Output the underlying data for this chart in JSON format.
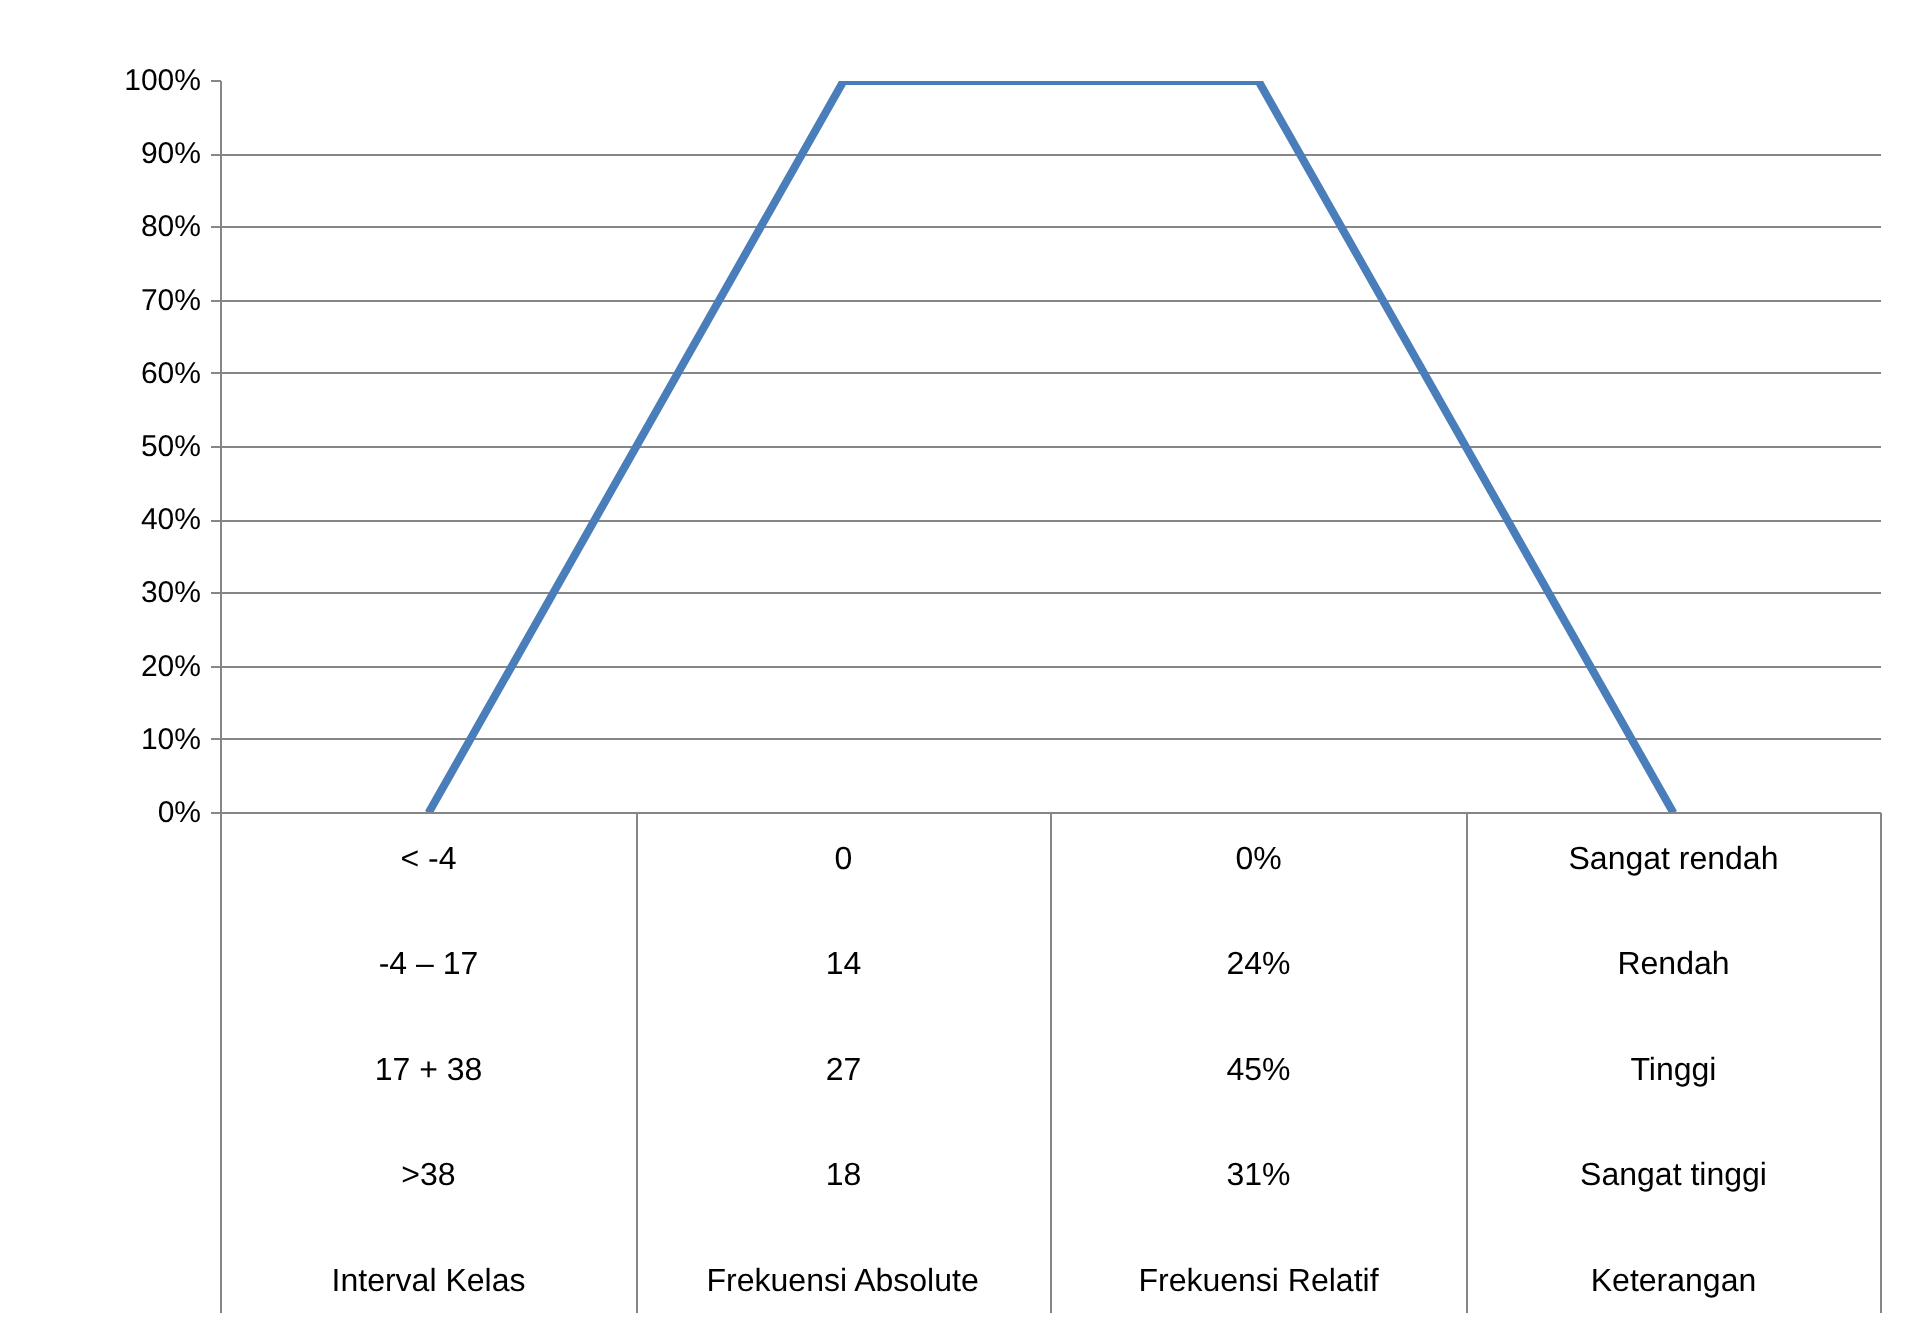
{
  "chart_data": {
    "type": "line",
    "categories": [
      "< -4\n-4 – 17\n17 + 38\n>38\nInterval Kelas",
      "0\n14\n27\n18\nFrekuensi Absolute",
      "0%\n24%\n45%\n31%\nFrekuensi Relatif",
      "Sangat rendah\nRendah\nTinggi\nSangat tinggi\nKeterangan"
    ],
    "series": [
      {
        "color": "#4a7ebb",
        "values": [
          0,
          100,
          100,
          0
        ]
      }
    ],
    "ylim": [
      0,
      100
    ],
    "yticks": [
      {
        "value": 0,
        "label": "0%"
      },
      {
        "value": 10,
        "label": "10%"
      },
      {
        "value": 20,
        "label": "20%"
      },
      {
        "value": 30,
        "label": "30%"
      },
      {
        "value": 40,
        "label": "40%"
      },
      {
        "value": 50,
        "label": "50%"
      },
      {
        "value": 60,
        "label": "60%"
      },
      {
        "value": 70,
        "label": "70%"
      },
      {
        "value": 80,
        "label": "80%"
      },
      {
        "value": 90,
        "label": "90%"
      },
      {
        "value": 100,
        "label": "100%"
      }
    ],
    "grid": "y",
    "marker": "none",
    "line_style": "solid"
  }
}
